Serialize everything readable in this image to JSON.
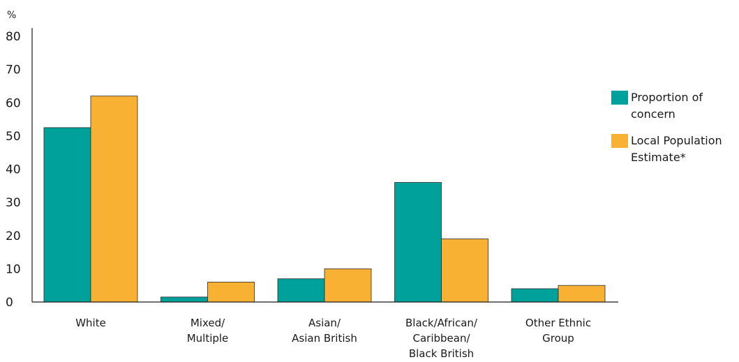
{
  "chart_data": {
    "type": "bar",
    "unit_label": "%",
    "categories": [
      [
        "White"
      ],
      [
        "Mixed/",
        "Multiple"
      ],
      [
        "Asian/",
        "Asian British"
      ],
      [
        "Black/African/",
        "Caribbean/",
        "Black British"
      ],
      [
        "Other Ethnic",
        "Group"
      ]
    ],
    "series": [
      {
        "name": "Proportion of concern",
        "legend_lines": [
          "Proportion of",
          "concern"
        ],
        "color": "#00a19a",
        "values": [
          52.5,
          1.5,
          7,
          36,
          4
        ]
      },
      {
        "name": "Local Population Estimate*",
        "legend_lines": [
          "Local Population",
          "Estimate*"
        ],
        "color": "#f8b133",
        "values": [
          62,
          6,
          10,
          19,
          5
        ]
      }
    ],
    "ylim": [
      0,
      80
    ],
    "yticks": [
      0,
      10,
      20,
      30,
      40,
      50,
      60,
      70,
      80
    ],
    "grid": false,
    "legend_position": "right"
  }
}
